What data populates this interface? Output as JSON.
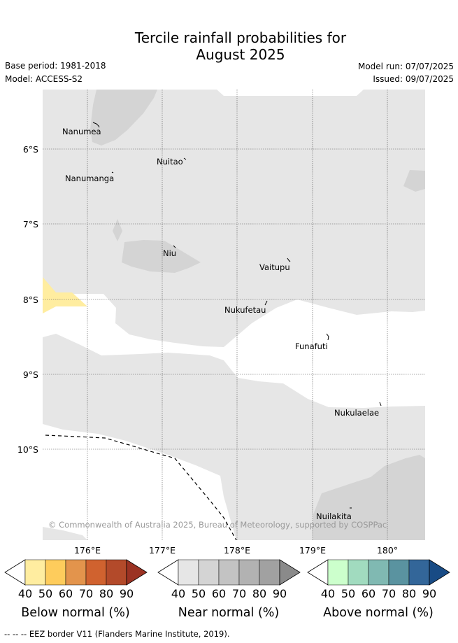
{
  "title": {
    "line1": "Tercile rainfall probabilities for",
    "line2": "August 2025"
  },
  "meta": {
    "base_period": "Base period: 1981-2018",
    "model": "Model: ACCESS-S2",
    "model_run": "Model run: 07/07/2025",
    "issued": "Issued: 09/07/2025"
  },
  "map": {
    "lat_labels": [
      "6°S",
      "7°S",
      "8°S",
      "9°S",
      "10°S"
    ],
    "lon_labels": [
      "176°E",
      "177°E",
      "178°E",
      "179°E",
      "180°"
    ],
    "places": [
      {
        "name": "Nanumea"
      },
      {
        "name": "Nuitao"
      },
      {
        "name": "Nanumanga"
      },
      {
        "name": "Niu"
      },
      {
        "name": "Vaitupu"
      },
      {
        "name": "Nukufetau"
      },
      {
        "name": "Funafuti"
      },
      {
        "name": "Nukulaelae"
      },
      {
        "name": "Nuilakita"
      }
    ],
    "copyright": "© Commonwealth of Australia 2025, Bureau of Meteorology, supported by COSPPac",
    "colors": {
      "near_40": "#e6e6e6",
      "near_50": "#d4d4d4",
      "below_40": "#ffeda0",
      "eez_line": "#000000"
    }
  },
  "legends": [
    {
      "label": "Below normal (%)",
      "ticks": [
        "40",
        "50",
        "60",
        "70",
        "80",
        "90"
      ],
      "colors": [
        "#ffeda0",
        "#fecc5c",
        "#e3944c",
        "#d0622f",
        "#b34a2a",
        "#9b3223"
      ]
    },
    {
      "label": "Near normal (%)",
      "ticks": [
        "40",
        "50",
        "60",
        "70",
        "80",
        "90"
      ],
      "colors": [
        "#e6e6e6",
        "#d4d4d4",
        "#c3c3c3",
        "#b2b2b2",
        "#a1a1a1",
        "#8a8a8a"
      ]
    },
    {
      "label": "Above normal (%)",
      "ticks": [
        "40",
        "50",
        "60",
        "70",
        "80",
        "90"
      ],
      "colors": [
        "#ccffcc",
        "#a1dbbf",
        "#80b9b2",
        "#5a93a0",
        "#336699",
        "#184b85"
      ]
    }
  ],
  "footnote": "--  --  -- EEZ border V11 (Flanders Marine Institute, 2019)."
}
